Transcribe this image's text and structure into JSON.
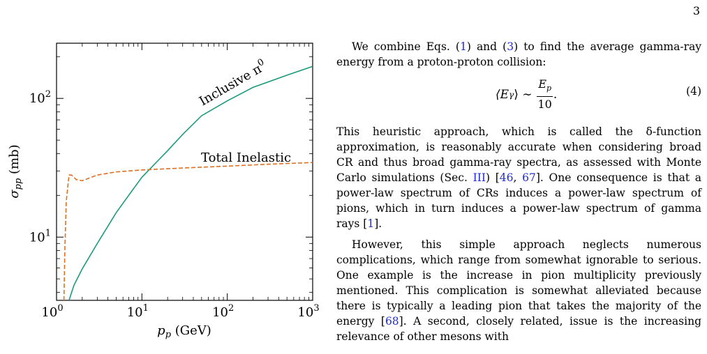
{
  "page_number": "3",
  "paragraph_1": {
    "lead": "We combine Eqs. (",
    "ref_a": "1",
    "mid": ") and (",
    "ref_b": "3",
    "tail": ") to find the average gamma-ray energy from a proton-proton collision:"
  },
  "equation": {
    "lhs": "⟨E",
    "lhs_sub": "γ",
    "lhs_close": "⟩ ∼",
    "numerator": "E",
    "numerator_sub": "p",
    "denominator": "10",
    "period": ".",
    "number": "(4)"
  },
  "paragraph_2": {
    "a": "This heuristic approach, which is called the δ-function approximation, is reasonably accurate when considering broad CR and thus broad gamma-ray spectra, as assessed with Monte Carlo simulations (Sec. ",
    "ref_sec": "III",
    "b": ") [",
    "ref_1": "46",
    "c": ", ",
    "ref_2": "67",
    "d": "]. One consequence is that a power-law spectrum of CRs induces a power-law spectrum of pions, which in turn induces a power-law spectrum of gamma rays [",
    "ref_3": "1",
    "e": "]."
  },
  "paragraph_3": {
    "a": "However, this simple approach neglects numerous complications, which range from somewhat ignorable to serious. One example is the increase in pion multiplicity previously mentioned. This complication is somewhat alleviated because there is typically a leading pion that takes the majority of the energy [",
    "ref_1": "68",
    "b": "]. A second, closely related, issue is the increasing relevance of other mesons with"
  },
  "chart_data": {
    "type": "line",
    "xlabel": "p_p  (GeV)",
    "ylabel": "σ_pp  (mb)",
    "xscale": "log",
    "yscale": "log",
    "xlim": [
      1,
      1000
    ],
    "ylim": [
      3.5,
      250
    ],
    "xticks": [
      "10^0",
      "10^1",
      "10^2",
      "10^3"
    ],
    "yticks": [
      "10^1",
      "10^2"
    ],
    "grid": false,
    "series": [
      {
        "name": "Inclusive π^0",
        "color": "#1a9a7a",
        "style": "solid",
        "x": [
          1.4,
          1.6,
          2.0,
          3.0,
          5.0,
          7.0,
          10,
          15,
          20,
          30,
          50,
          100,
          200,
          500,
          1000
        ],
        "y": [
          3.5,
          4.5,
          5.9,
          9.0,
          15,
          20,
          27,
          35,
          42,
          55,
          75,
          96,
          120,
          147,
          170
        ]
      },
      {
        "name": "Total Inelastic",
        "color": "#e07020",
        "style": "dashed",
        "x": [
          1.22,
          1.25,
          1.3,
          1.4,
          1.5,
          1.7,
          2.0,
          3.0,
          5.0,
          10,
          30,
          100,
          300,
          1000
        ],
        "y": [
          3.5,
          8,
          18,
          28,
          28,
          26,
          25.5,
          28,
          29.5,
          30.5,
          31.5,
          32.5,
          33.5,
          34.5
        ]
      }
    ]
  }
}
